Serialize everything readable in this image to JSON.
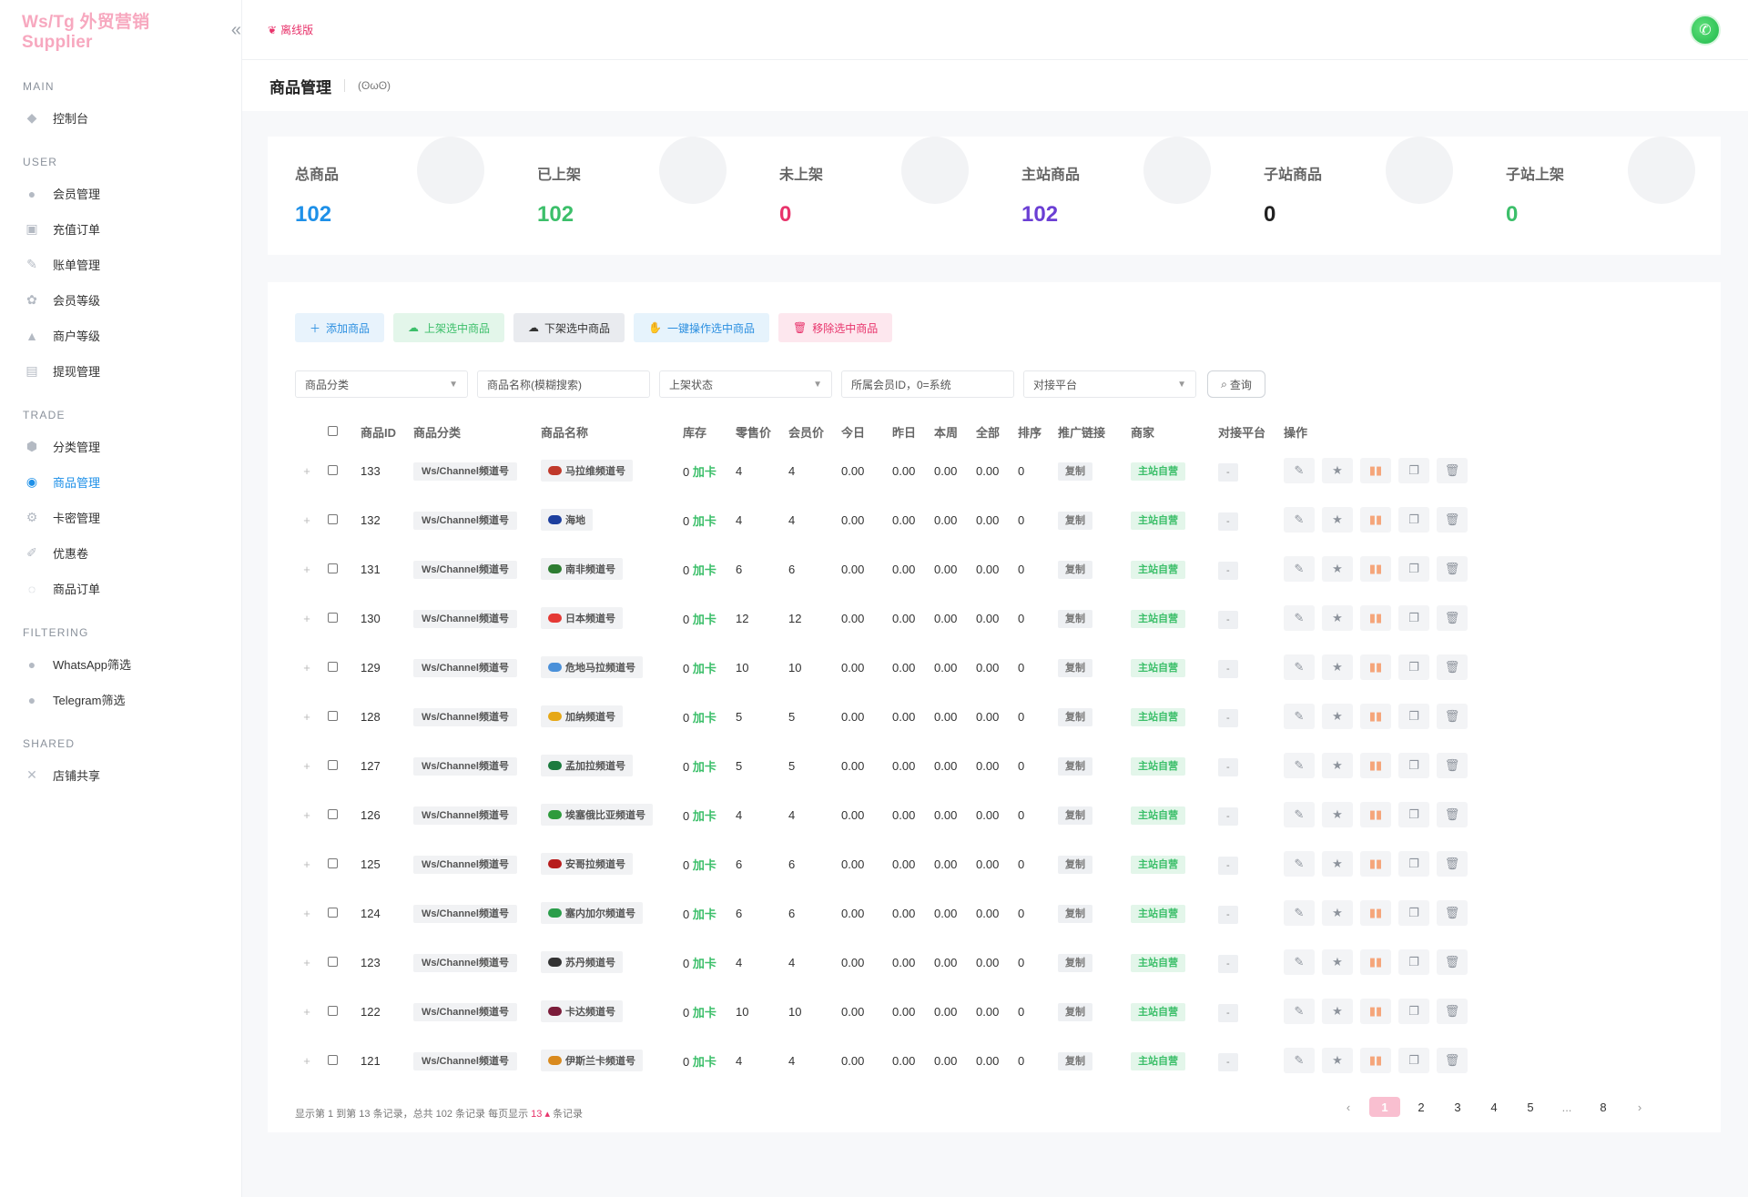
{
  "brand": "Ws/Tg 外贸营销 Supplier",
  "topbar": {
    "offline_label": "离线版"
  },
  "sidebar": {
    "sections": [
      {
        "title": "MAIN",
        "items": [
          {
            "label": "控制台",
            "icon": "dashboard-icon"
          }
        ]
      },
      {
        "title": "USER",
        "items": [
          {
            "label": "会员管理",
            "icon": "user-icon"
          },
          {
            "label": "充值订单",
            "icon": "recharge-icon"
          },
          {
            "label": "账单管理",
            "icon": "bill-icon"
          },
          {
            "label": "会员等级",
            "icon": "level-icon"
          },
          {
            "label": "商户等级",
            "icon": "merchant-icon"
          },
          {
            "label": "提现管理",
            "icon": "withdraw-icon"
          }
        ]
      },
      {
        "title": "TRADE",
        "items": [
          {
            "label": "分类管理",
            "icon": "category-icon"
          },
          {
            "label": "商品管理",
            "icon": "goods-icon",
            "active": true
          },
          {
            "label": "卡密管理",
            "icon": "card-icon"
          },
          {
            "label": "优惠卷",
            "icon": "coupon-icon"
          },
          {
            "label": "商品订单",
            "icon": "order-icon"
          }
        ]
      },
      {
        "title": "FILTERING",
        "items": [
          {
            "label": "WhatsApp筛选",
            "icon": "whatsapp-icon"
          },
          {
            "label": "Telegram筛选",
            "icon": "telegram-icon"
          }
        ]
      },
      {
        "title": "SHARED",
        "items": [
          {
            "label": "店铺共享",
            "icon": "share-icon"
          }
        ]
      }
    ]
  },
  "page": {
    "title": "商品管理",
    "subtitle": "(ʘωʘ)"
  },
  "stats": [
    {
      "label": "总商品",
      "value": "102",
      "color": "#1e90e8"
    },
    {
      "label": "已上架",
      "value": "102",
      "color": "#3cbf6a"
    },
    {
      "label": "未上架",
      "value": "0",
      "color": "#e8336b"
    },
    {
      "label": "主站商品",
      "value": "102",
      "color": "#6b3fd4"
    },
    {
      "label": "子站商品",
      "value": "0",
      "color": "#222222"
    },
    {
      "label": "子站上架",
      "value": "0",
      "color": "#3cbf6a"
    }
  ],
  "toolbar": {
    "add": "添加商品",
    "shelve": "上架选中商品",
    "unshelve": "下架选中商品",
    "batch": "一键操作选中商品",
    "remove": "移除选中商品"
  },
  "filters": {
    "category": "商品分类",
    "name_placeholder": "商品名称(模糊搜索)",
    "status": "上架状态",
    "member_placeholder": "所属会员ID，0=系统",
    "platform": "对接平台",
    "search": "查询"
  },
  "table": {
    "columns": [
      "商品ID",
      "商品分类",
      "商品名称",
      "库存",
      "零售价",
      "会员价",
      "今日",
      "昨日",
      "本周",
      "全部",
      "排序",
      "推广链接",
      "商家",
      "对接平台",
      "操作"
    ],
    "rows": [
      {
        "id": "133",
        "category": "Ws/Channel频道号",
        "name": "马拉维频道号",
        "flag": "#c0392b",
        "stock": "0",
        "stock_unit": "加卡",
        "retail": "4",
        "member": "4",
        "today": "0.00",
        "yesterday": "0.00",
        "week": "0.00",
        "all": "0.00",
        "sort": "0",
        "link": "复制",
        "vendor": "主站自营",
        "platform": "-"
      },
      {
        "id": "132",
        "category": "Ws/Channel频道号",
        "name": "海地",
        "flag": "#1d3f9e",
        "stock": "0",
        "stock_unit": "加卡",
        "retail": "4",
        "member": "4",
        "today": "0.00",
        "yesterday": "0.00",
        "week": "0.00",
        "all": "0.00",
        "sort": "0",
        "link": "复制",
        "vendor": "主站自营",
        "platform": "-"
      },
      {
        "id": "131",
        "category": "Ws/Channel频道号",
        "name": "南非频道号",
        "flag": "#2e7d32",
        "stock": "0",
        "stock_unit": "加卡",
        "retail": "6",
        "member": "6",
        "today": "0.00",
        "yesterday": "0.00",
        "week": "0.00",
        "all": "0.00",
        "sort": "0",
        "link": "复制",
        "vendor": "主站自营",
        "platform": "-"
      },
      {
        "id": "130",
        "category": "Ws/Channel频道号",
        "name": "日本频道号",
        "flag": "#e53935",
        "stock": "0",
        "stock_unit": "加卡",
        "retail": "12",
        "member": "12",
        "today": "0.00",
        "yesterday": "0.00",
        "week": "0.00",
        "all": "0.00",
        "sort": "0",
        "link": "复制",
        "vendor": "主站自营",
        "platform": "-"
      },
      {
        "id": "129",
        "category": "Ws/Channel频道号",
        "name": "危地马拉频道号",
        "flag": "#4a90d9",
        "stock": "0",
        "stock_unit": "加卡",
        "retail": "10",
        "member": "10",
        "today": "0.00",
        "yesterday": "0.00",
        "week": "0.00",
        "all": "0.00",
        "sort": "0",
        "link": "复制",
        "vendor": "主站自营",
        "platform": "-"
      },
      {
        "id": "128",
        "category": "Ws/Channel频道号",
        "name": "加纳频道号",
        "flag": "#e6a817",
        "stock": "0",
        "stock_unit": "加卡",
        "retail": "5",
        "member": "5",
        "today": "0.00",
        "yesterday": "0.00",
        "week": "0.00",
        "all": "0.00",
        "sort": "0",
        "link": "复制",
        "vendor": "主站自营",
        "platform": "-"
      },
      {
        "id": "127",
        "category": "Ws/Channel频道号",
        "name": "孟加拉频道号",
        "flag": "#1b7a3e",
        "stock": "0",
        "stock_unit": "加卡",
        "retail": "5",
        "member": "5",
        "today": "0.00",
        "yesterday": "0.00",
        "week": "0.00",
        "all": "0.00",
        "sort": "0",
        "link": "复制",
        "vendor": "主站自营",
        "platform": "-"
      },
      {
        "id": "126",
        "category": "Ws/Channel频道号",
        "name": "埃塞俄比亚频道号",
        "flag": "#2e9b3c",
        "stock": "0",
        "stock_unit": "加卡",
        "retail": "4",
        "member": "4",
        "today": "0.00",
        "yesterday": "0.00",
        "week": "0.00",
        "all": "0.00",
        "sort": "0",
        "link": "复制",
        "vendor": "主站自营",
        "platform": "-"
      },
      {
        "id": "125",
        "category": "Ws/Channel频道号",
        "name": "安哥拉频道号",
        "flag": "#b71c1c",
        "stock": "0",
        "stock_unit": "加卡",
        "retail": "6",
        "member": "6",
        "today": "0.00",
        "yesterday": "0.00",
        "week": "0.00",
        "all": "0.00",
        "sort": "0",
        "link": "复制",
        "vendor": "主站自营",
        "platform": "-"
      },
      {
        "id": "124",
        "category": "Ws/Channel频道号",
        "name": "塞内加尔频道号",
        "flag": "#2a9d4a",
        "stock": "0",
        "stock_unit": "加卡",
        "retail": "6",
        "member": "6",
        "today": "0.00",
        "yesterday": "0.00",
        "week": "0.00",
        "all": "0.00",
        "sort": "0",
        "link": "复制",
        "vendor": "主站自营",
        "platform": "-"
      },
      {
        "id": "123",
        "category": "Ws/Channel频道号",
        "name": "苏丹频道号",
        "flag": "#333333",
        "stock": "0",
        "stock_unit": "加卡",
        "retail": "4",
        "member": "4",
        "today": "0.00",
        "yesterday": "0.00",
        "week": "0.00",
        "all": "0.00",
        "sort": "0",
        "link": "复制",
        "vendor": "主站自营",
        "platform": "-"
      },
      {
        "id": "122",
        "category": "Ws/Channel频道号",
        "name": "卡达频道号",
        "flag": "#7b1c3a",
        "stock": "0",
        "stock_unit": "加卡",
        "retail": "10",
        "member": "10",
        "today": "0.00",
        "yesterday": "0.00",
        "week": "0.00",
        "all": "0.00",
        "sort": "0",
        "link": "复制",
        "vendor": "主站自营",
        "platform": "-"
      },
      {
        "id": "121",
        "category": "Ws/Channel频道号",
        "name": "伊斯兰卡频道号",
        "flag": "#d98a1e",
        "stock": "0",
        "stock_unit": "加卡",
        "retail": "4",
        "member": "4",
        "today": "0.00",
        "yesterday": "0.00",
        "week": "0.00",
        "all": "0.00",
        "sort": "0",
        "link": "复制",
        "vendor": "主站自营",
        "platform": "-"
      }
    ]
  },
  "footer": {
    "info_prefix": "显示第 1 到第 13 条记录，总共 102 条记录 每页显示",
    "per_page": "13",
    "info_suffix": "条记录"
  },
  "pager": {
    "prev": "‹",
    "pages": [
      "1",
      "2",
      "3",
      "4",
      "5",
      "...",
      "8"
    ],
    "next": "›",
    "current": "1"
  }
}
